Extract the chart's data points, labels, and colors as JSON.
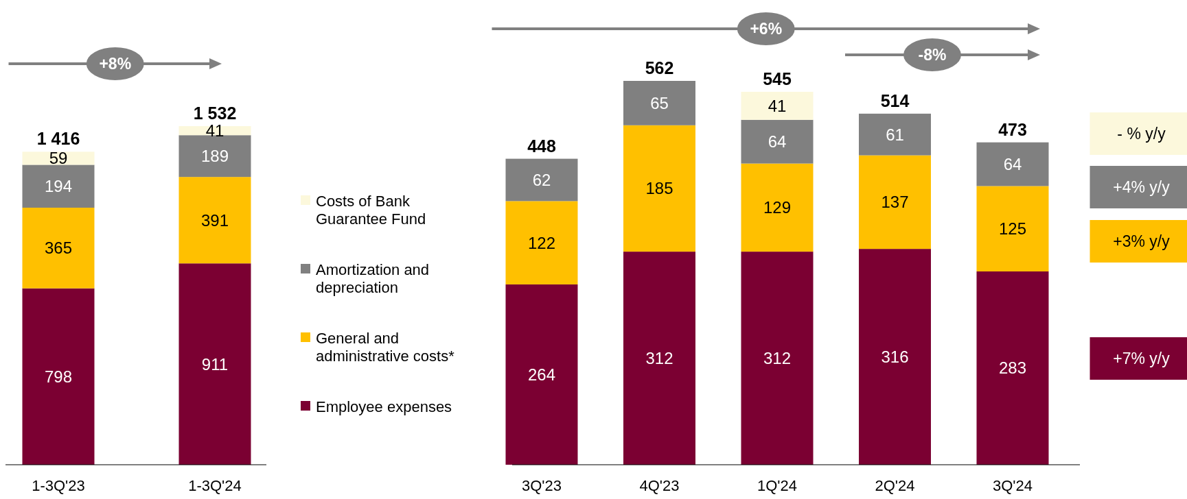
{
  "chart_data": [
    {
      "type": "bar",
      "stacked": true,
      "categories": [
        "1-3Q'23",
        "1-3Q'24"
      ],
      "series": [
        {
          "name": "Employee expenses",
          "color": "#7b0032",
          "values": [
            798,
            911
          ]
        },
        {
          "name": "General and administrative costs*",
          "color": "#ffc000",
          "values": [
            365,
            391
          ]
        },
        {
          "name": "Amortization and depreciation",
          "color": "#808080",
          "values": [
            194,
            189
          ]
        },
        {
          "name": "Costs of Bank Guarantee Fund",
          "color": "#fcf8dc",
          "values": [
            59,
            41
          ]
        }
      ],
      "data_labels": true,
      "totals": [
        "1 416",
        "1 532"
      ],
      "legend": "right",
      "annotations": [
        "+8%"
      ]
    },
    {
      "type": "bar",
      "stacked": true,
      "categories": [
        "3Q'23",
        "4Q'23",
        "1Q'24",
        "2Q'24",
        "3Q'24"
      ],
      "series": [
        {
          "color": "#7b0032",
          "values": [
            264,
            312,
            312,
            316,
            283
          ]
        },
        {
          "color": "#ffc000",
          "values": [
            122,
            185,
            129,
            137,
            125
          ]
        },
        {
          "color": "#808080",
          "values": [
            62,
            65,
            64,
            61,
            64
          ]
        },
        {
          "color": "#fcf8dc",
          "values": [
            null,
            null,
            41,
            null,
            null
          ]
        }
      ],
      "data_labels": true,
      "totals": [
        "448",
        "562",
        "545",
        "514",
        "473"
      ],
      "annotations": [
        "+6%",
        "-8%",
        "- % y/y",
        "+4% y/y",
        "+3% y/y",
        "+7% y/y"
      ]
    }
  ]
}
